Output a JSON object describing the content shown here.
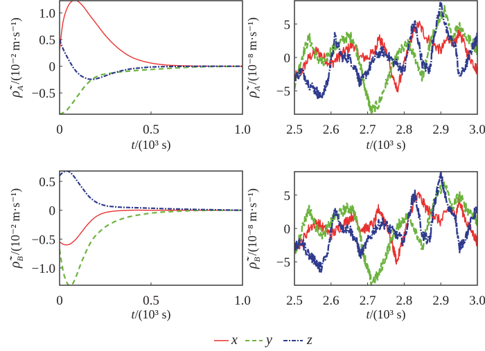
{
  "colors": {
    "x": "#e8312f",
    "y": "#6cb33e",
    "z": "#2e3a8c",
    "frame": "#3a3a3a"
  },
  "legend": {
    "entries": [
      {
        "name": "x",
        "style": "solid"
      },
      {
        "name": "y",
        "style": "dashed"
      },
      {
        "name": "z",
        "style": "dashdot"
      }
    ],
    "placement": "bottom-center"
  },
  "chart_data": [
    {
      "id": "rhoA-transient",
      "type": "line",
      "ylabel_main": "ρ̃̇",
      "ylabel_sub": "A",
      "ylabel_unit": "/(10⁻² m·s⁻¹)",
      "xlabel": "t/(10³ s)",
      "xlim": [
        0,
        1.0
      ],
      "ylim": [
        -0.9,
        1.23
      ],
      "xticks": [
        0,
        0.5,
        1.0
      ],
      "xtick_labels": [
        "0",
        "0.5",
        "1.0"
      ],
      "yticks": [
        1.0,
        0.5,
        0,
        -0.5
      ],
      "ytick_labels": [
        "1.0",
        "0.5",
        "0",
        "−0.5"
      ],
      "grid": false,
      "series": [
        {
          "name": "x",
          "x": [
            0,
            0.02,
            0.05,
            0.08,
            0.1,
            0.13,
            0.16,
            0.2,
            0.25,
            0.3,
            0.35,
            0.4,
            0.45,
            0.5,
            0.55,
            0.6,
            0.7,
            0.8,
            1.0
          ],
          "values": [
            0.3,
            0.85,
            1.15,
            1.24,
            1.22,
            1.12,
            0.98,
            0.8,
            0.58,
            0.4,
            0.26,
            0.16,
            0.1,
            0.06,
            0.035,
            0.02,
            0.008,
            0.003,
            0
          ]
        },
        {
          "name": "y",
          "x": [
            0,
            0.03,
            0.06,
            0.1,
            0.14,
            0.18,
            0.22,
            0.26,
            0.3,
            0.35,
            0.4,
            0.5,
            0.6,
            0.7,
            0.8,
            1.0
          ],
          "values": [
            -0.9,
            -0.85,
            -0.74,
            -0.55,
            -0.37,
            -0.24,
            -0.17,
            -0.14,
            -0.12,
            -0.1,
            -0.085,
            -0.06,
            -0.04,
            -0.02,
            -0.008,
            0
          ]
        },
        {
          "name": "z",
          "x": [
            0,
            0.02,
            0.05,
            0.08,
            0.11,
            0.14,
            0.17,
            0.2,
            0.25,
            0.3,
            0.35,
            0.4,
            0.5,
            0.6,
            0.8,
            1.0
          ],
          "values": [
            0.5,
            0.32,
            0.12,
            -0.05,
            -0.16,
            -0.22,
            -0.245,
            -0.235,
            -0.18,
            -0.12,
            -0.075,
            -0.045,
            -0.015,
            -0.005,
            0,
            0
          ]
        }
      ]
    },
    {
      "id": "rhoA-steady",
      "type": "line",
      "ylabel_main": "ρ̃̇",
      "ylabel_sub": "A",
      "ylabel_unit": "/(10⁻⁸ m·s⁻¹)",
      "xlabel": "t/(10³ s)",
      "xlim": [
        2.5,
        3.0
      ],
      "ylim": [
        -8.5,
        8.5
      ],
      "xticks": [
        2.5,
        2.6,
        2.7,
        2.8,
        2.9,
        3.0
      ],
      "xtick_labels": [
        "2.5",
        "2.6",
        "2.7",
        "2.8",
        "2.9",
        "3.0"
      ],
      "yticks": [
        5,
        0,
        -5
      ],
      "ytick_labels": [
        "5",
        "0",
        "−5"
      ],
      "grid": false,
      "series": [
        {
          "name": "x",
          "x": [
            2.5,
            2.52,
            2.54,
            2.56,
            2.58,
            2.6,
            2.62,
            2.64,
            2.66,
            2.68,
            2.7,
            2.72,
            2.73,
            2.75,
            2.77,
            2.78,
            2.8,
            2.82,
            2.84,
            2.86,
            2.88,
            2.9,
            2.92,
            2.94,
            2.95,
            2.97,
            2.99,
            3.0
          ],
          "values": [
            -3,
            -2,
            0,
            1,
            0,
            -1,
            0,
            1,
            2,
            0,
            0,
            1,
            3,
            1,
            -3,
            -5,
            -1,
            3,
            5,
            3,
            2,
            1,
            3,
            2,
            4,
            1,
            -1,
            -2
          ]
        },
        {
          "name": "y",
          "x": [
            2.5,
            2.52,
            2.54,
            2.56,
            2.58,
            2.6,
            2.62,
            2.64,
            2.66,
            2.68,
            2.69,
            2.7,
            2.71,
            2.73,
            2.75,
            2.77,
            2.79,
            2.81,
            2.83,
            2.85,
            2.87,
            2.89,
            2.91,
            2.93,
            2.95,
            2.97,
            2.99,
            3.0
          ],
          "values": [
            -4,
            0,
            3,
            0,
            -1,
            1,
            2,
            3,
            3,
            -1,
            -4,
            -6,
            -8,
            -7,
            -4,
            -1,
            1,
            2,
            0,
            -3,
            2,
            5,
            7,
            3,
            5,
            3,
            2,
            1
          ]
        },
        {
          "name": "z",
          "x": [
            2.5,
            2.52,
            2.54,
            2.56,
            2.57,
            2.59,
            2.61,
            2.63,
            2.65,
            2.67,
            2.68,
            2.7,
            2.72,
            2.74,
            2.76,
            2.78,
            2.8,
            2.82,
            2.83,
            2.85,
            2.87,
            2.88,
            2.9,
            2.92,
            2.94,
            2.95,
            2.97,
            2.99,
            3.0
          ],
          "values": [
            -3,
            -2,
            -4,
            -5,
            -6,
            -4,
            3,
            0,
            0,
            -2,
            -4,
            -2,
            0,
            1,
            0,
            -1,
            -2,
            4,
            5,
            -1,
            -2,
            3,
            8,
            3,
            2,
            -3,
            -1,
            2,
            3
          ]
        }
      ]
    },
    {
      "id": "rhoB-transient",
      "type": "line",
      "ylabel_main": "ρ̃̇",
      "ylabel_sub": "B",
      "ylabel_unit": "/(10⁻² m·s⁻¹)",
      "xlabel": "t/(10³ s)",
      "xlim": [
        0,
        1.0
      ],
      "ylim": [
        -1.3,
        0.68
      ],
      "xticks": [
        0,
        0.5,
        1.0
      ],
      "xtick_labels": [
        "0",
        "0.5",
        "1.0"
      ],
      "yticks": [
        0.5,
        0,
        -0.5,
        -1.0
      ],
      "ytick_labels": [
        "0.5",
        "0",
        "−0.5",
        "−1.0"
      ],
      "grid": false,
      "series": [
        {
          "name": "x",
          "x": [
            0,
            0.02,
            0.04,
            0.06,
            0.09,
            0.12,
            0.15,
            0.18,
            0.21,
            0.25,
            0.3,
            0.35,
            0.4,
            0.5,
            0.6,
            0.8,
            1.0
          ],
          "values": [
            -0.55,
            -0.59,
            -0.6,
            -0.58,
            -0.5,
            -0.38,
            -0.26,
            -0.16,
            -0.09,
            -0.04,
            -0.015,
            -0.005,
            0,
            0,
            0,
            0,
            0
          ]
        },
        {
          "name": "y",
          "x": [
            0,
            0.015,
            0.03,
            0.05,
            0.07,
            0.09,
            0.11,
            0.14,
            0.17,
            0.2,
            0.25,
            0.3,
            0.35,
            0.4,
            0.5,
            0.6,
            0.7,
            0.8,
            1.0
          ],
          "values": [
            -0.68,
            -0.98,
            -1.18,
            -1.3,
            -1.28,
            -1.15,
            -0.98,
            -0.75,
            -0.56,
            -0.43,
            -0.29,
            -0.2,
            -0.14,
            -0.1,
            -0.05,
            -0.025,
            -0.01,
            -0.003,
            0
          ]
        },
        {
          "name": "z",
          "x": [
            0,
            0.02,
            0.04,
            0.06,
            0.08,
            0.1,
            0.13,
            0.16,
            0.2,
            0.25,
            0.3,
            0.35,
            0.4,
            0.5,
            0.6,
            0.8,
            1.0
          ],
          "values": [
            0.6,
            0.66,
            0.68,
            0.65,
            0.58,
            0.49,
            0.36,
            0.24,
            0.14,
            0.08,
            0.06,
            0.05,
            0.045,
            0.035,
            0.025,
            0.01,
            0
          ]
        }
      ]
    },
    {
      "id": "rhoB-steady",
      "type": "line",
      "ylabel_main": "ρ̃̇",
      "ylabel_sub": "B",
      "ylabel_unit": "/(10⁻⁸ m·s⁻¹)",
      "xlabel": "t/(10³ s)",
      "xlim": [
        2.5,
        3.0
      ],
      "ylim": [
        -8.5,
        8.5
      ],
      "xticks": [
        2.5,
        2.6,
        2.7,
        2.8,
        2.9,
        3.0
      ],
      "xtick_labels": [
        "2.5",
        "2.6",
        "2.7",
        "2.8",
        "2.9",
        "3.0"
      ],
      "yticks": [
        5,
        0,
        -5
      ],
      "ytick_labels": [
        "5",
        "0",
        "−5"
      ],
      "grid": false,
      "series": [
        {
          "name": "x",
          "x": [
            2.5,
            2.52,
            2.54,
            2.56,
            2.58,
            2.6,
            2.62,
            2.64,
            2.66,
            2.68,
            2.7,
            2.72,
            2.73,
            2.75,
            2.77,
            2.78,
            2.8,
            2.82,
            2.84,
            2.86,
            2.88,
            2.9,
            2.92,
            2.94,
            2.95,
            2.97,
            2.99,
            3.0
          ],
          "values": [
            -3,
            -2,
            0,
            1,
            0,
            -1,
            0,
            1,
            2,
            0,
            0,
            1,
            3,
            1,
            -3,
            -5,
            -1,
            3,
            5,
            3,
            2,
            1,
            3,
            2,
            4,
            1,
            -1,
            -2
          ]
        },
        {
          "name": "y",
          "x": [
            2.5,
            2.52,
            2.54,
            2.56,
            2.58,
            2.6,
            2.62,
            2.64,
            2.66,
            2.68,
            2.69,
            2.7,
            2.71,
            2.73,
            2.75,
            2.77,
            2.79,
            2.81,
            2.83,
            2.85,
            2.87,
            2.89,
            2.91,
            2.93,
            2.95,
            2.97,
            2.99,
            3.0
          ],
          "values": [
            -4,
            0,
            3,
            0,
            -1,
            1,
            2,
            3,
            3,
            -1,
            -4,
            -6,
            -8,
            -7,
            -4,
            -1,
            1,
            2,
            0,
            -3,
            2,
            5,
            7,
            3,
            5,
            3,
            2,
            1
          ]
        },
        {
          "name": "z",
          "x": [
            2.5,
            2.52,
            2.54,
            2.56,
            2.57,
            2.59,
            2.61,
            2.63,
            2.65,
            2.67,
            2.68,
            2.7,
            2.72,
            2.74,
            2.76,
            2.78,
            2.8,
            2.82,
            2.83,
            2.85,
            2.87,
            2.88,
            2.9,
            2.92,
            2.94,
            2.95,
            2.97,
            2.99,
            3.0
          ],
          "values": [
            -3,
            -2,
            -4,
            -5,
            -6,
            -4,
            3,
            0,
            0,
            -2,
            -4,
            -2,
            0,
            1,
            0,
            -1,
            -2,
            4,
            5,
            -1,
            -2,
            3,
            8,
            3,
            2,
            -3,
            -1,
            2,
            3
          ]
        }
      ]
    }
  ]
}
